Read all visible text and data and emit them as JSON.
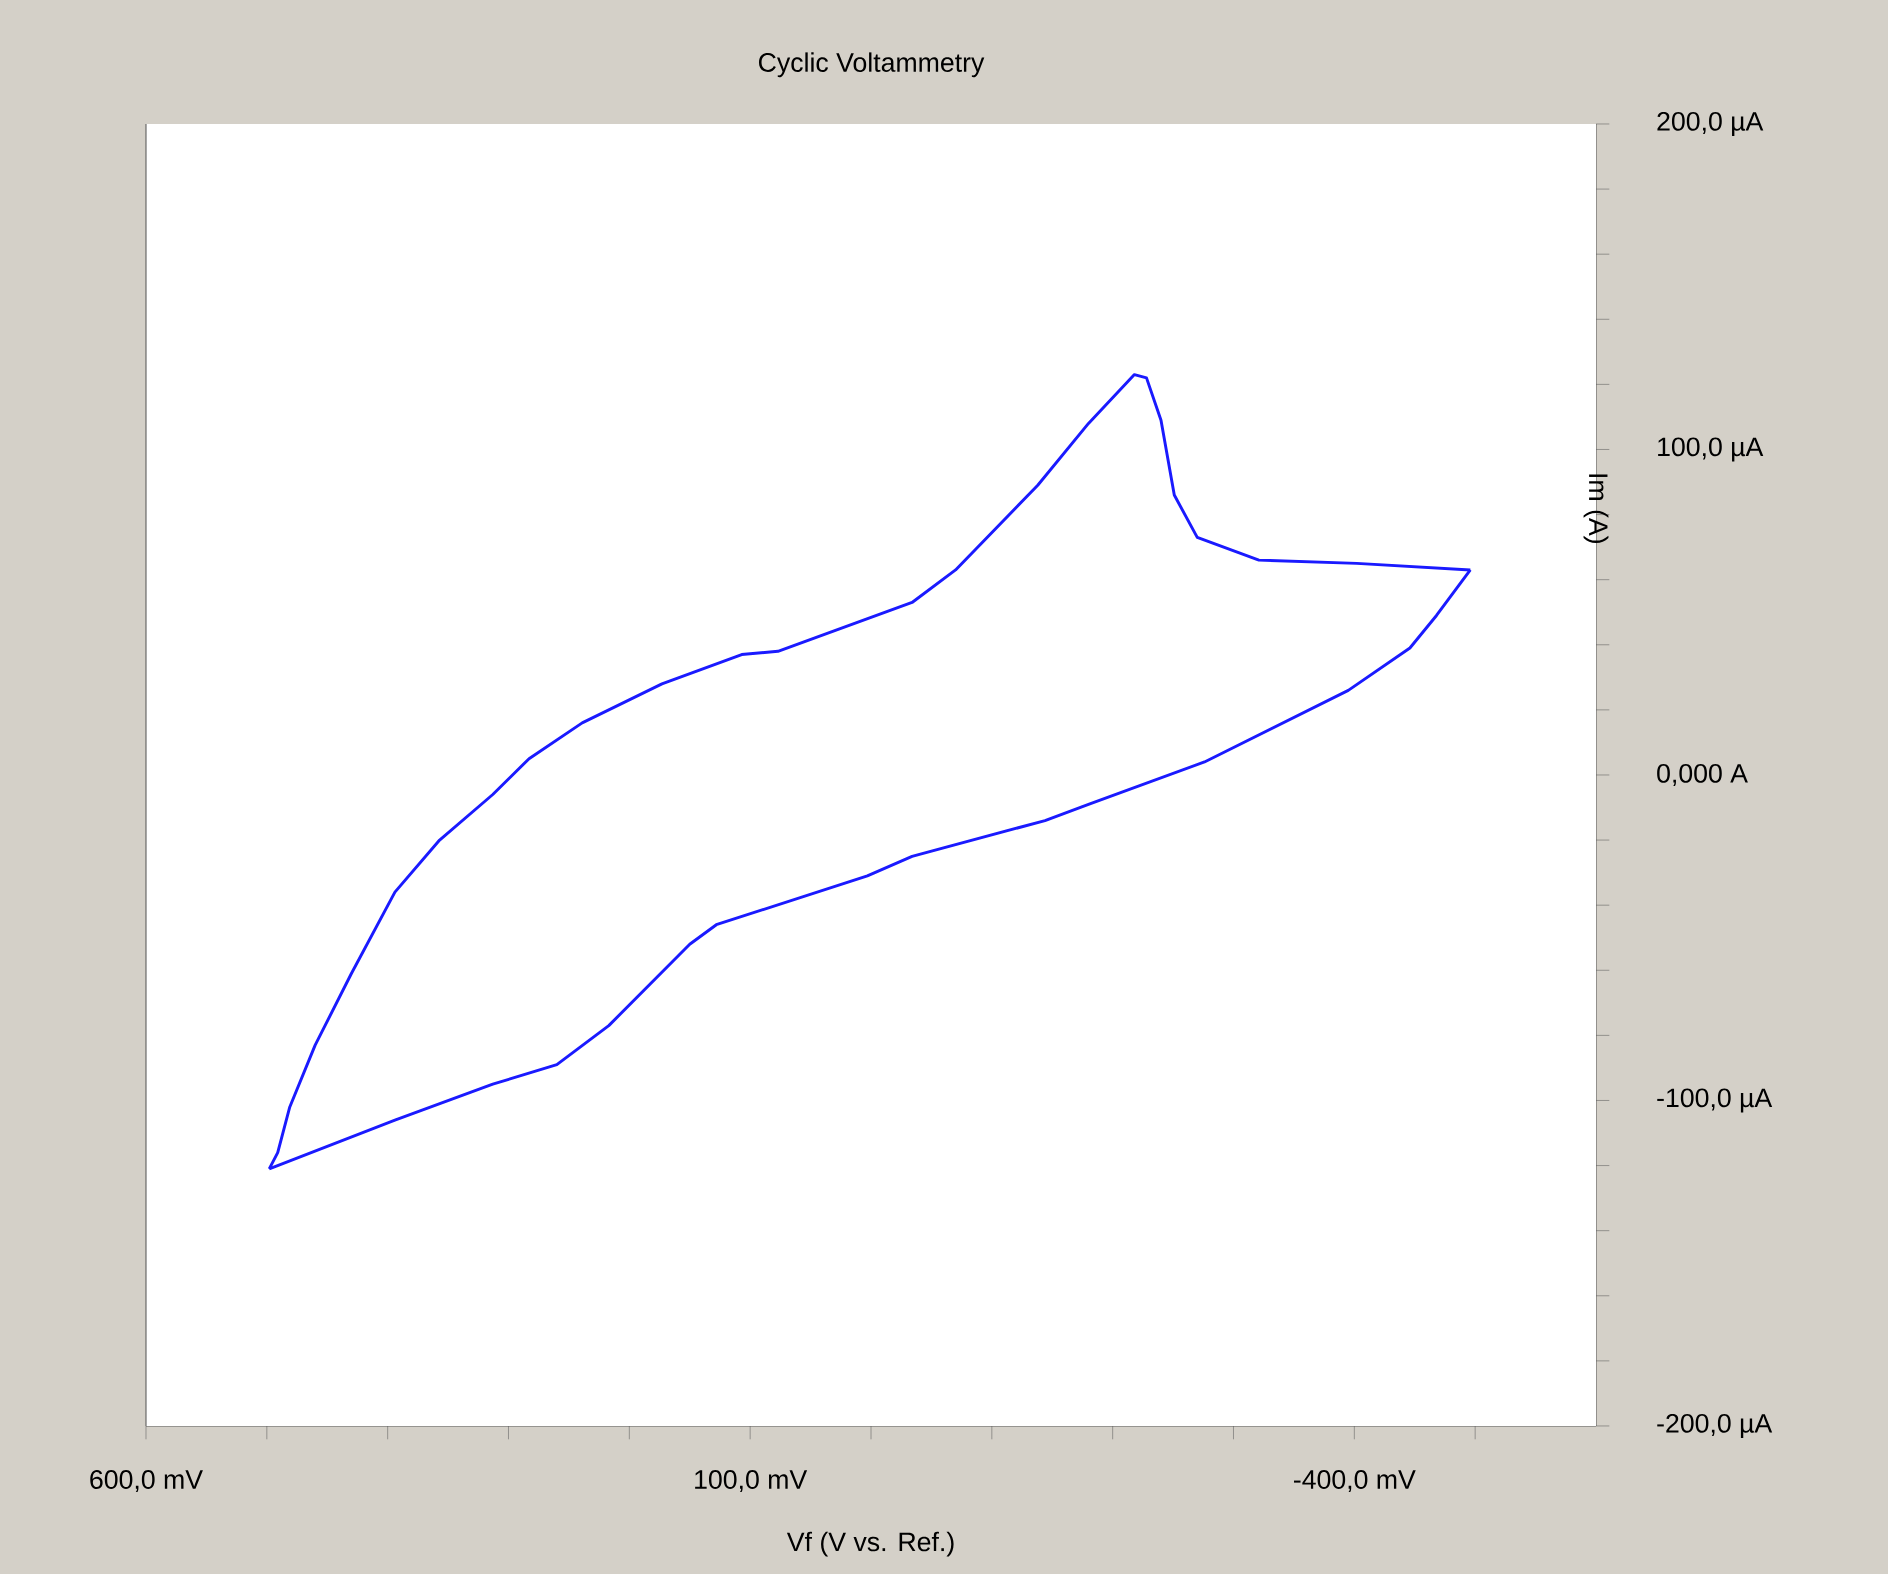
{
  "chart_data": {
    "type": "line",
    "title": "Cyclic Voltammetry",
    "xlabel": "Vf (V vs. Ref.)",
    "ylabel": "Im (A)",
    "series": [
      {
        "color": "#1a1aff",
        "x": [
          498,
          491,
          481,
          460,
          430,
          394,
          357,
          313,
          283,
          239,
          173,
          107,
          77,
          -34,
          -70,
          -138,
          -180,
          -218,
          -228,
          -240,
          -251,
          -270,
          -321,
          -402,
          -496
        ],
        "values": [
          -121,
          -116,
          -102,
          -83,
          -61,
          -36,
          -20,
          -6,
          5,
          16,
          28,
          37,
          38,
          53,
          63,
          89,
          108,
          123,
          122,
          109,
          86,
          73,
          66,
          65,
          63
        ]
      },
      {
        "color": "#1a1aff",
        "x": [
          -496,
          -468,
          -446,
          -395,
          -276,
          -180,
          -144,
          -34,
          3,
          128,
          150,
          217,
          260,
          313,
          394,
          498
        ],
        "values": [
          63,
          49,
          39,
          26,
          4,
          -9,
          -14,
          -25,
          -31,
          -46,
          -52,
          -77,
          -89,
          -95,
          -106,
          -121
        ]
      }
    ],
    "xlim": [
      600,
      -600
    ],
    "ylim": [
      -200,
      200
    ],
    "xticks": [
      {
        "value": 600,
        "label": "600,0 mV"
      },
      {
        "value": 500,
        "label": null
      },
      {
        "value": 400,
        "label": null
      },
      {
        "value": 300,
        "label": null
      },
      {
        "value": 200,
        "label": null
      },
      {
        "value": 100,
        "label": "100,0 mV"
      },
      {
        "value": 0,
        "label": null
      },
      {
        "value": -100,
        "label": null
      },
      {
        "value": -200,
        "label": null
      },
      {
        "value": -300,
        "label": null
      },
      {
        "value": -400,
        "label": "-400,0 mV"
      },
      {
        "value": -500,
        "label": null
      }
    ],
    "yticks": [
      {
        "value": 200,
        "label": "200,0 µA"
      },
      {
        "value": 180,
        "label": null
      },
      {
        "value": 160,
        "label": null
      },
      {
        "value": 140,
        "label": null
      },
      {
        "value": 120,
        "label": null
      },
      {
        "value": 100,
        "label": "100,0 µA"
      },
      {
        "value": 80,
        "label": null
      },
      {
        "value": 60,
        "label": null
      },
      {
        "value": 40,
        "label": null
      },
      {
        "value": 20,
        "label": null
      },
      {
        "value": 0,
        "label": "0,000 A"
      },
      {
        "value": -20,
        "label": null
      },
      {
        "value": -40,
        "label": null
      },
      {
        "value": -60,
        "label": null
      },
      {
        "value": -80,
        "label": null
      },
      {
        "value": -100,
        "label": "-100,0 µA"
      },
      {
        "value": -120,
        "label": null
      },
      {
        "value": -140,
        "label": null
      },
      {
        "value": -160,
        "label": null
      },
      {
        "value": -180,
        "label": null
      },
      {
        "value": -200,
        "label": "-200,0 µA"
      }
    ]
  }
}
